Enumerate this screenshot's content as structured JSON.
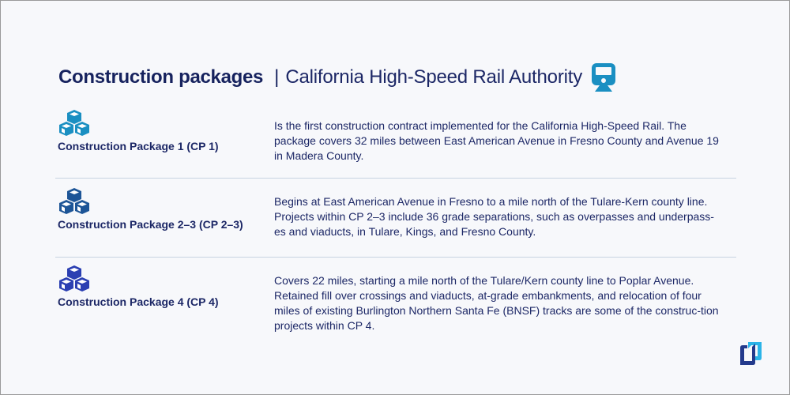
{
  "header": {
    "title": "Construction packages",
    "separator": "|",
    "subtitle": "California High-Speed Rail Authority",
    "icon": "train-icon"
  },
  "colors": {
    "text": "#1c2766",
    "background": "#f7f8fb",
    "icon_cp1": "#1a8fc2",
    "icon_cp23": "#1d5597",
    "icon_cp4": "#2b3fb2",
    "train": "#1a8fc2"
  },
  "packages": [
    {
      "name": "Construction Package 1 (CP 1)",
      "icon": "cubes-icon",
      "description": "Is the first construction contract implemented for the California High-Speed Rail. The package covers 32 miles between East American Avenue in Fresno County and Avenue 19 in Madera County."
    },
    {
      "name": "Construction Package 2–3 (CP 2–3)",
      "icon": "cubes-icon",
      "description": "Begins at East American Avenue in Fresno to a mile north of the Tulare-Kern county line. Projects within CP 2–3 include 36 grade separations, such as overpasses and underpass-es and viaducts, in Tulare, Kings, and Fresno County."
    },
    {
      "name": "Construction Package 4 (CP 4)",
      "icon": "cubes-icon",
      "description": "Covers 22 miles, starting a mile north of the Tulare/Kern county line to Poplar Avenue. Retained fill over crossings and viaducts, at-grade embankments, and relocation of four miles of existing Burlington Northern Santa Fe (BNSF) tracks are some of the construc-tion projects within CP 4."
    }
  ],
  "logo": "brand-logo-icon"
}
